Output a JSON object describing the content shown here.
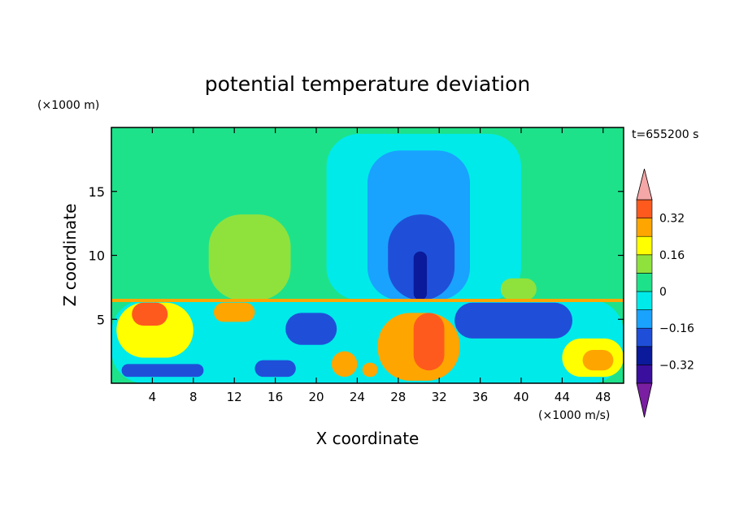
{
  "chart_data": {
    "type": "heatmap",
    "title": "potential temperature deviation",
    "xlabel": "X coordinate",
    "ylabel": "Z coordinate",
    "x_unit": "(×1000 m/s)",
    "y_unit": "(×1000 m)",
    "time_label": "t=655200 s",
    "xlim": [
      0,
      50
    ],
    "ylim": [
      0,
      20
    ],
    "x_ticks": [
      4,
      8,
      12,
      16,
      20,
      24,
      28,
      32,
      36,
      40,
      44,
      48
    ],
    "y_ticks": [
      5,
      10,
      15
    ],
    "colorbar": {
      "levels": [
        -0.4,
        -0.32,
        -0.24,
        -0.16,
        -0.08,
        0,
        0.08,
        0.16,
        0.24,
        0.32,
        0.4
      ],
      "tick_labels": [
        "0.32",
        "0.16",
        "0",
        "−0.16",
        "−0.32"
      ],
      "tick_values": [
        0.32,
        0.16,
        0,
        -0.16,
        -0.32
      ],
      "colors": [
        "#7a1fa2",
        "#3a0f9e",
        "#0a1a9a",
        "#1f4fd8",
        "#1aa2ff",
        "#00eaea",
        "#1ee28a",
        "#8fe23c",
        "#ffff00",
        "#ffa500",
        "#ff5a1e",
        "#f22020",
        "#f5a6a6"
      ]
    },
    "regions": [
      {
        "kind": "rect",
        "x": [
          0,
          50
        ],
        "z": [
          0,
          20
        ],
        "value": 0.04
      },
      {
        "kind": "blob",
        "x": [
          21,
          40
        ],
        "z": [
          6.5,
          19.5
        ],
        "value": -0.04
      },
      {
        "kind": "blob",
        "x": [
          25,
          35
        ],
        "z": [
          6.5,
          18.2
        ],
        "value": -0.12
      },
      {
        "kind": "blob",
        "x": [
          27,
          33.5
        ],
        "z": [
          6.5,
          13.2
        ],
        "value": -0.2
      },
      {
        "kind": "blob",
        "x": [
          29.5,
          30.8
        ],
        "z": [
          6.5,
          10.3
        ],
        "value": -0.28
      },
      {
        "kind": "blob",
        "x": [
          9.5,
          17.5
        ],
        "z": [
          6.5,
          13.2
        ],
        "value": 0.12
      },
      {
        "kind": "blob",
        "x": [
          38,
          41.5
        ],
        "z": [
          6.5,
          8.2
        ],
        "value": 0.12
      },
      {
        "kind": "blob",
        "x": [
          0,
          50
        ],
        "z": [
          0,
          6.5
        ],
        "value": -0.04
      },
      {
        "kind": "blob",
        "x": [
          0.5,
          8
        ],
        "z": [
          2,
          6.3
        ],
        "value": 0.2
      },
      {
        "kind": "blob",
        "x": [
          2,
          5.5
        ],
        "z": [
          4.5,
          6.3
        ],
        "value": 0.36
      },
      {
        "kind": "blob",
        "x": [
          10,
          14
        ],
        "z": [
          4.8,
          6.3
        ],
        "value": 0.28
      },
      {
        "kind": "blob",
        "x": [
          1,
          9
        ],
        "z": [
          0.5,
          1.5
        ],
        "value": -0.2
      },
      {
        "kind": "blob",
        "x": [
          14,
          18
        ],
        "z": [
          0.5,
          1.8
        ],
        "value": -0.2
      },
      {
        "kind": "blob",
        "x": [
          26,
          34
        ],
        "z": [
          0.2,
          5.5
        ],
        "value": 0.24
      },
      {
        "kind": "blob",
        "x": [
          29.5,
          32.5
        ],
        "z": [
          1,
          5.5
        ],
        "value": 0.36
      },
      {
        "kind": "blob",
        "x": [
          21.5,
          24
        ],
        "z": [
          0.5,
          2.5
        ],
        "value": 0.24
      },
      {
        "kind": "blob",
        "x": [
          24.5,
          26
        ],
        "z": [
          0.5,
          1.6
        ],
        "value": 0.24
      },
      {
        "kind": "blob",
        "x": [
          44,
          50
        ],
        "z": [
          0.5,
          3.5
        ],
        "value": 0.2
      },
      {
        "kind": "blob",
        "x": [
          46,
          49
        ],
        "z": [
          1,
          2.6
        ],
        "value": 0.28
      },
      {
        "kind": "blob",
        "x": [
          33.5,
          45
        ],
        "z": [
          3.5,
          6.3
        ],
        "value": -0.2
      },
      {
        "kind": "blob",
        "x": [
          17,
          22
        ],
        "z": [
          3,
          5.5
        ],
        "value": -0.2
      },
      {
        "kind": "rect",
        "x": [
          0,
          50
        ],
        "z": [
          6.35,
          6.6
        ],
        "value": 0.28
      }
    ]
  }
}
